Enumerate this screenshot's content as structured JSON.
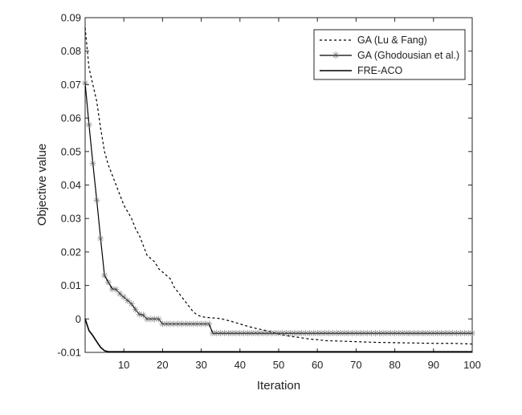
{
  "chart_data": {
    "type": "line",
    "title": "",
    "xlabel": "Iteration",
    "ylabel": "Objective value",
    "xlim": [
      0,
      100
    ],
    "ylim": [
      -0.01,
      0.09
    ],
    "xticks": [
      10,
      20,
      30,
      40,
      50,
      60,
      70,
      80,
      90,
      100
    ],
    "yticks": [
      -0.01,
      0,
      0.01,
      0.02,
      0.03,
      0.04,
      0.05,
      0.06,
      0.07,
      0.08,
      0.09
    ],
    "xtick_labels": [
      "10",
      "20",
      "30",
      "40",
      "50",
      "60",
      "70",
      "80",
      "90",
      "100"
    ],
    "ytick_labels": [
      "-0.01",
      "0",
      "0.01",
      "0.02",
      "0.03",
      "0.04",
      "0.05",
      "0.06",
      "0.07",
      "0.08",
      "0.09"
    ],
    "grid": false,
    "legend_position": "top-right",
    "series": [
      {
        "name": "GA (Lu & Fang)",
        "style": "dashed",
        "color": "#000000",
        "x": [
          0,
          1,
          2,
          3,
          4,
          5,
          6,
          7,
          8,
          9,
          10,
          11,
          12,
          13,
          14,
          15,
          16,
          17,
          18,
          19,
          20,
          21,
          22,
          23,
          24,
          25,
          26,
          27,
          28,
          29,
          30,
          31,
          32,
          33,
          34,
          35,
          36,
          37,
          38,
          40,
          42,
          44,
          46,
          48,
          50,
          52,
          55,
          58,
          60,
          62,
          65,
          70,
          75,
          80,
          85,
          90,
          95,
          100
        ],
        "y": [
          0.087,
          0.075,
          0.07,
          0.065,
          0.057,
          0.05,
          0.046,
          0.043,
          0.04,
          0.037,
          0.034,
          0.032,
          0.03,
          0.027,
          0.025,
          0.022,
          0.019,
          0.018,
          0.017,
          0.015,
          0.014,
          0.013,
          0.012,
          0.0095,
          0.008,
          0.0065,
          0.005,
          0.0035,
          0.002,
          0.0012,
          0.0007,
          0.0005,
          0.0004,
          0.0003,
          0.0002,
          0.0001,
          -0.0002,
          -0.0005,
          -0.0008,
          -0.0015,
          -0.0022,
          -0.0028,
          -0.0033,
          -0.0038,
          -0.0045,
          -0.005,
          -0.0055,
          -0.006,
          -0.0062,
          -0.0065,
          -0.0066,
          -0.0068,
          -0.007,
          -0.0071,
          -0.0072,
          -0.0073,
          -0.0073,
          -0.0075
        ]
      },
      {
        "name": "GA (Ghodousian et al.)",
        "style": "solid-star",
        "color": "#000000",
        "x": [
          0,
          1,
          2,
          3,
          4,
          5,
          6,
          7,
          8,
          9,
          10,
          11,
          12,
          13,
          14,
          15,
          16,
          17,
          18,
          19,
          20,
          21,
          22,
          23,
          24,
          25,
          26,
          27,
          28,
          29,
          30,
          31,
          32,
          33,
          34,
          35,
          36,
          37,
          38,
          39,
          40,
          41,
          42,
          43,
          44,
          45,
          46,
          47,
          48,
          49,
          50,
          51,
          52,
          53,
          54,
          55,
          56,
          57,
          58,
          59,
          60,
          61,
          62,
          63,
          64,
          65,
          66,
          67,
          68,
          69,
          70,
          71,
          72,
          73,
          74,
          75,
          76,
          77,
          78,
          79,
          80,
          81,
          82,
          83,
          84,
          85,
          86,
          87,
          88,
          89,
          90,
          91,
          92,
          93,
          94,
          95,
          96,
          97,
          98,
          99,
          100
        ],
        "y": [
          0.0705,
          0.058,
          0.0465,
          0.0355,
          0.024,
          0.013,
          0.011,
          0.009,
          0.0088,
          0.0075,
          0.0065,
          0.0055,
          0.0045,
          0.0028,
          0.0014,
          0.0011,
          0.0,
          0.0,
          0.0,
          0.0,
          -0.0015,
          -0.0015,
          -0.0015,
          -0.0015,
          -0.0015,
          -0.0015,
          -0.0015,
          -0.0015,
          -0.0015,
          -0.0015,
          -0.0015,
          -0.0015,
          -0.0015,
          -0.0043,
          -0.0043,
          -0.0043,
          -0.0043,
          -0.0043,
          -0.0043,
          -0.0043,
          -0.0043,
          -0.0043,
          -0.0043,
          -0.0043,
          -0.0043,
          -0.0043,
          -0.0043,
          -0.0043,
          -0.0043,
          -0.0043,
          -0.0043,
          -0.0043,
          -0.0043,
          -0.0043,
          -0.0043,
          -0.0043,
          -0.0043,
          -0.0043,
          -0.0043,
          -0.0043,
          -0.0043,
          -0.0043,
          -0.0043,
          -0.0043,
          -0.0043,
          -0.0043,
          -0.0043,
          -0.0043,
          -0.0043,
          -0.0043,
          -0.0043,
          -0.0043,
          -0.0043,
          -0.0043,
          -0.0043,
          -0.0043,
          -0.0043,
          -0.0043,
          -0.0043,
          -0.0043,
          -0.0043,
          -0.0043,
          -0.0043,
          -0.0043,
          -0.0043,
          -0.0043,
          -0.0043,
          -0.0043,
          -0.0043,
          -0.0043,
          -0.0043,
          -0.0043,
          -0.0043,
          -0.0043,
          -0.0043,
          -0.0043,
          -0.0043,
          -0.0043,
          -0.0043,
          -0.0043,
          -0.0043
        ]
      },
      {
        "name": "FRE-ACO",
        "style": "solid",
        "color": "#000000",
        "x": [
          0,
          1,
          2,
          3,
          4,
          5,
          6,
          8,
          10,
          20,
          30,
          40,
          50,
          60,
          70,
          80,
          90,
          100
        ],
        "y": [
          0.0,
          -0.0035,
          -0.005,
          -0.0068,
          -0.0085,
          -0.0095,
          -0.0098,
          -0.0098,
          -0.0098,
          -0.0098,
          -0.0098,
          -0.0098,
          -0.0098,
          -0.0098,
          -0.0098,
          -0.0098,
          -0.0098,
          -0.0098
        ]
      }
    ]
  }
}
